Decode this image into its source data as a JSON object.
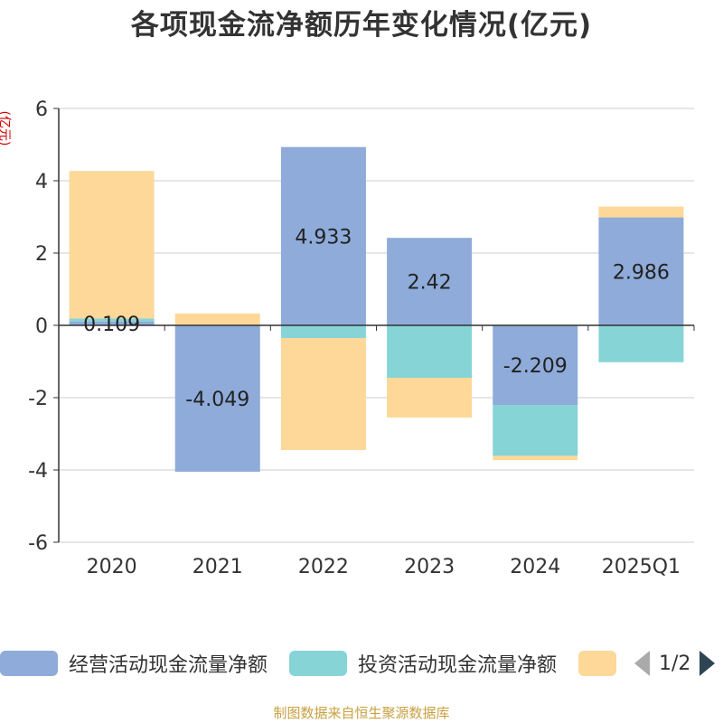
{
  "title": "各项现金流净额历年变化情况(亿元)",
  "unit_label": "(亿元)",
  "source": "制图数据来自恒生聚源数据库",
  "legend": {
    "items": [
      {
        "label": "经营活动现金流量净额",
        "color": "#8eabd9"
      },
      {
        "label": "投资活动现金流量净额",
        "color": "#86d4d6"
      },
      {
        "label": "",
        "color": "#fdd899"
      }
    ],
    "page": "1/2"
  },
  "chart_data": {
    "type": "bar",
    "stacked": true,
    "categories": [
      "2020",
      "2021",
      "2022",
      "2023",
      "2024",
      "2025Q1"
    ],
    "ylim": [
      -6,
      6
    ],
    "yticks": [
      -6,
      -4,
      -2,
      0,
      2,
      4,
      6
    ],
    "series": [
      {
        "name": "经营活动现金流量净额",
        "color": "#8eabd9",
        "values": [
          0.109,
          -4.049,
          4.933,
          2.42,
          -2.209,
          2.986
        ],
        "labels": [
          "0.109",
          "-4.049",
          "4.933",
          "2.42",
          "-2.209",
          "2.986"
        ]
      },
      {
        "name": "投资活动现金流量净额",
        "color": "#86d4d6",
        "values": [
          0.08,
          0.0,
          -0.35,
          -1.45,
          -1.4,
          -1.02
        ]
      },
      {
        "name": "",
        "color": "#fdd899",
        "values": [
          4.08,
          0.33,
          -3.1,
          -1.1,
          -0.12,
          0.3
        ]
      }
    ],
    "grid": true
  }
}
